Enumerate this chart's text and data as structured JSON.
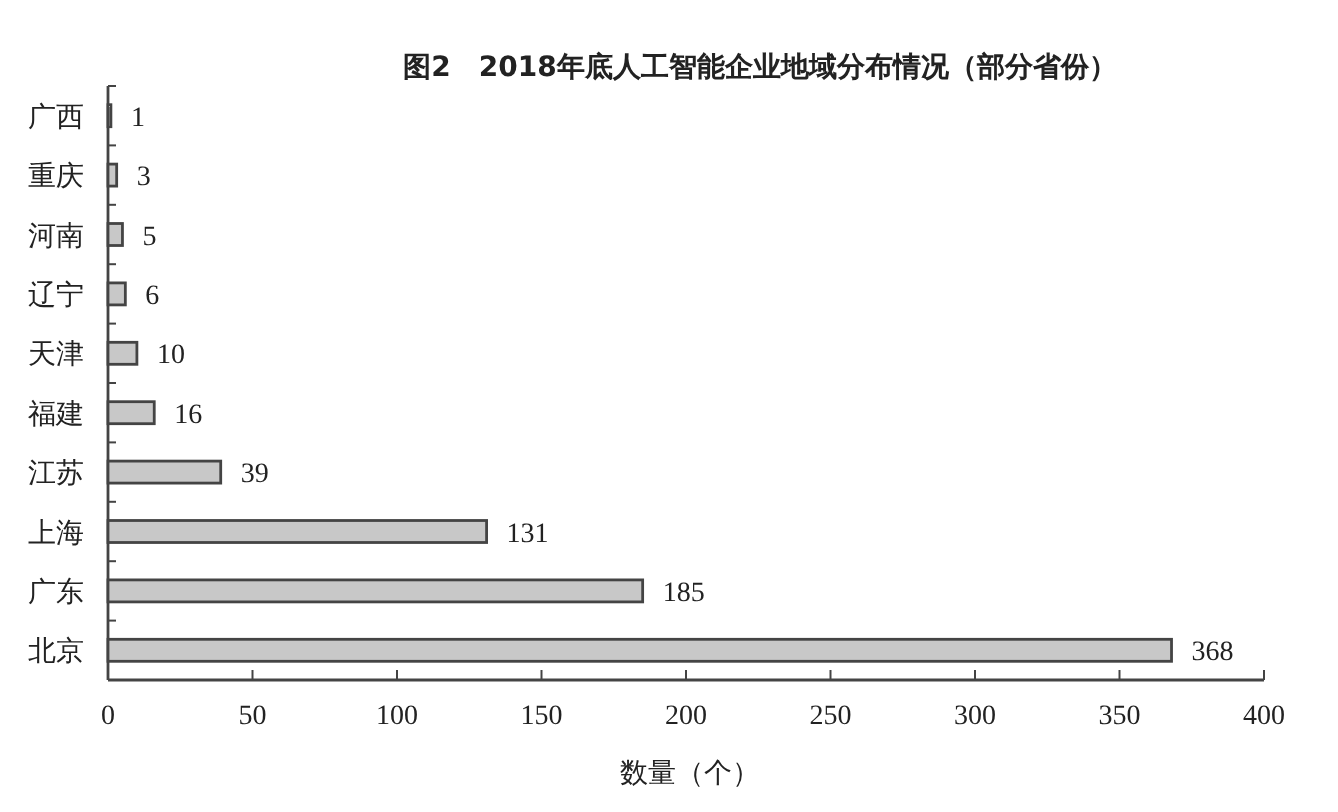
{
  "chart_data": {
    "type": "bar",
    "orientation": "horizontal",
    "title": "图2　2018年底人工智能企业地域分布情况（部分省份）",
    "xlabel": "数量（个）",
    "categories": [
      "广西",
      "重庆",
      "河南",
      "辽宁",
      "天津",
      "福建",
      "江苏",
      "上海",
      "广东",
      "北京"
    ],
    "values": [
      1,
      3,
      5,
      6,
      10,
      16,
      39,
      131,
      185,
      368
    ],
    "color": "#c8c8c8",
    "xlim": [
      0,
      400
    ],
    "xticks": [
      0,
      50,
      100,
      150,
      200,
      250,
      300,
      350,
      400
    ],
    "data_labels": true
  }
}
